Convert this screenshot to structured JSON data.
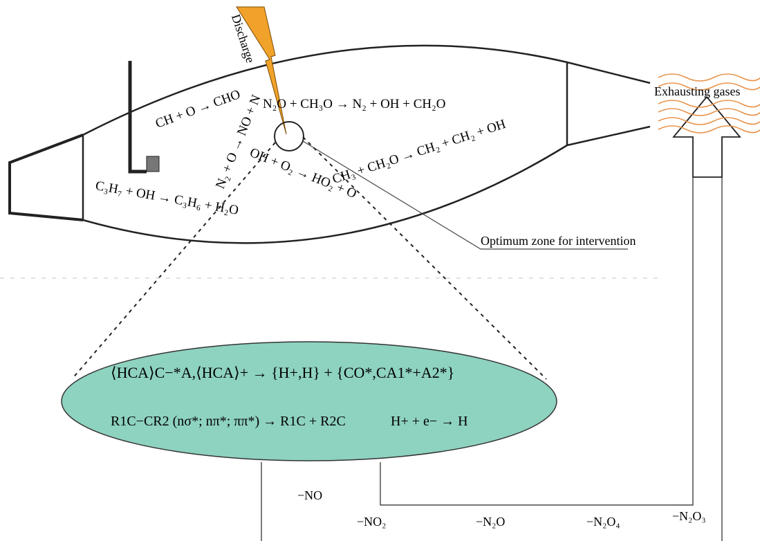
{
  "labels": {
    "discharge": "Discharge",
    "exhausting_gases": "Exhausting gases",
    "optimum_zone": "Optimum zone for intervention"
  },
  "reactions": {
    "r_cho": "CH + O → CHO",
    "r_no": "N₂ + O → NO + N",
    "r_n2oh": "N₂O + CH₃O → N₂ + OH + CH₂O",
    "r_ch2": "CH₃ + CH₂O → CH₂ + CH₂ + OH",
    "r_ho2": "OH + O₂ → HO₂ + O",
    "r_c3h6": "C₃H₇ + OH → C₃H₆ + H₂O",
    "mech1": "⟨HCA⟩C−*A,⟨HCA⟩+ → {H+,H} + {CO*,CA1*+A2*}",
    "mech2": "R1C−CR2 (nσ*; nπ*; ππ*) → R1C + R2C",
    "mech3": "H+ + e− → H"
  },
  "outputs": {
    "no": "−NO",
    "no2": "−NO₂",
    "n2o": "−N₂O",
    "n2o4": "−N₂O₄",
    "n2o3": "−N₂O₃"
  },
  "colors": {
    "discharge": "#f0a22a",
    "ellipse_fill": "#8ed2c0",
    "exhaust_waves": "#e8934a"
  }
}
